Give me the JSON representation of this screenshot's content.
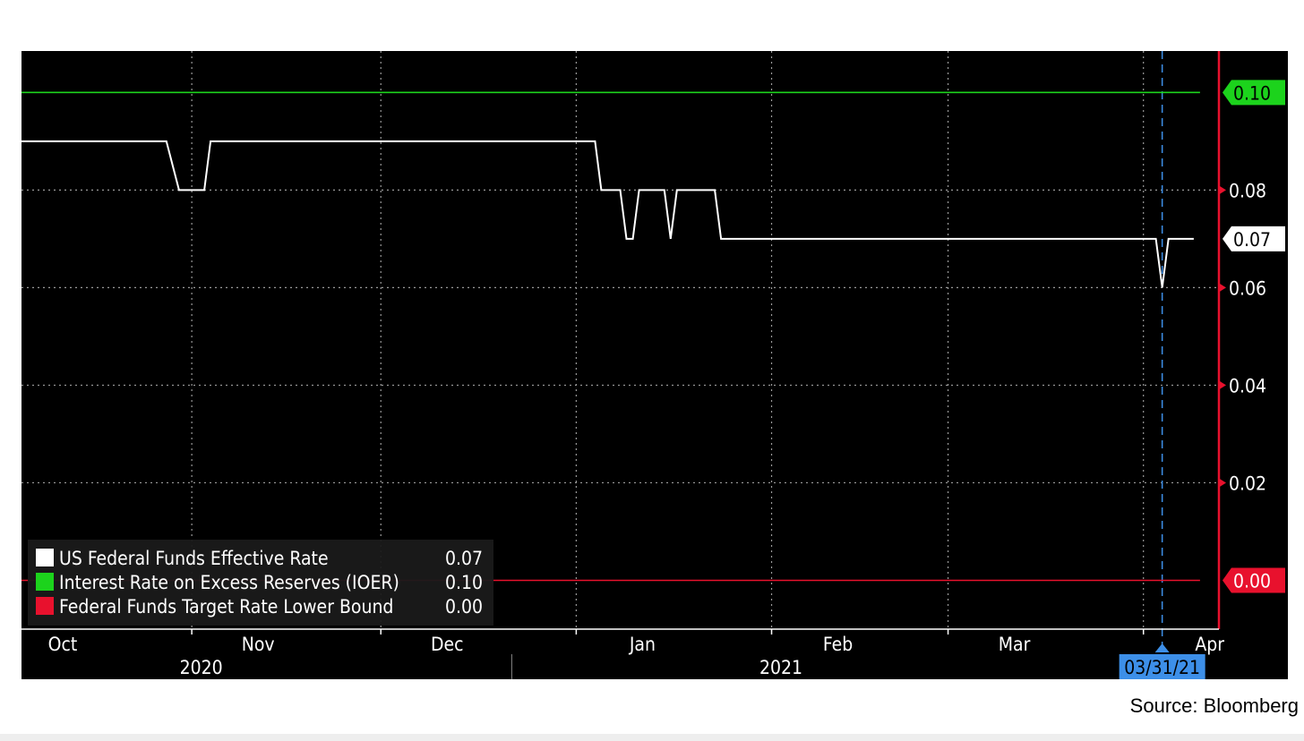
{
  "source": "Source: Bloomberg",
  "chart_data": {
    "type": "line",
    "title": "",
    "xlabel": "",
    "ylabel": "",
    "x_range": [
      "2020-10-01",
      "2021-04-09"
    ],
    "ylim": [
      -0.01,
      0.1085
    ],
    "y_ticks": [
      "0.02",
      "0.04",
      "0.06",
      "0.08"
    ],
    "month_ticks": [
      {
        "label": "Oct",
        "date": "2020-10-01"
      },
      {
        "label": "Nov",
        "date": "2020-11-01"
      },
      {
        "label": "Dec",
        "date": "2020-12-01"
      },
      {
        "label": "Jan",
        "date": "2021-01-01"
      },
      {
        "label": "Feb",
        "date": "2021-02-01"
      },
      {
        "label": "Mar",
        "date": "2021-03-01"
      },
      {
        "label": "Apr",
        "date": "2021-04-01"
      }
    ],
    "year_labels": [
      {
        "label": "2020",
        "date": "2020-11-15"
      },
      {
        "label": "2021",
        "date": "2021-02-15"
      }
    ],
    "grid": true,
    "legend_position": "bottom-left",
    "cursor": {
      "date": "2021-03-31",
      "label": "03/31/21",
      "color": "#3d8fe8"
    },
    "colors": {
      "background": "#000000",
      "axis": "#e8112d",
      "grid": "#9a9a9a"
    },
    "series": [
      {
        "name": "US Federal Funds Effective Rate",
        "last": "0.07",
        "color": "#ffffff",
        "points": [
          [
            "2020-10-01",
            0.09
          ],
          [
            "2020-10-24",
            0.09
          ],
          [
            "2020-10-26",
            0.08
          ],
          [
            "2020-10-30",
            0.08
          ],
          [
            "2020-10-31",
            0.09
          ],
          [
            "2020-12-31",
            0.09
          ],
          [
            "2021-01-01",
            0.08
          ],
          [
            "2021-01-04",
            0.08
          ],
          [
            "2021-01-05",
            0.07
          ],
          [
            "2021-01-06",
            0.07
          ],
          [
            "2021-01-07",
            0.08
          ],
          [
            "2021-01-11",
            0.08
          ],
          [
            "2021-01-12",
            0.07
          ],
          [
            "2021-01-13",
            0.08
          ],
          [
            "2021-01-19",
            0.08
          ],
          [
            "2021-01-20",
            0.07
          ],
          [
            "2021-03-30",
            0.07
          ],
          [
            "2021-03-31",
            0.06
          ],
          [
            "2021-04-01",
            0.07
          ],
          [
            "2021-04-05",
            0.07
          ]
        ]
      },
      {
        "name": "Interest Rate on Excess Reserves (IOER)",
        "last": "0.10",
        "color": "#1cd31c",
        "points": [
          [
            "2020-10-01",
            0.1
          ],
          [
            "2021-04-06",
            0.1
          ]
        ]
      },
      {
        "name": "Federal Funds Target Rate Lower Bound",
        "last": "0.00",
        "color": "#e8112d",
        "points": [
          [
            "2020-10-01",
            0.0
          ],
          [
            "2021-04-06",
            0.0
          ]
        ]
      }
    ]
  }
}
